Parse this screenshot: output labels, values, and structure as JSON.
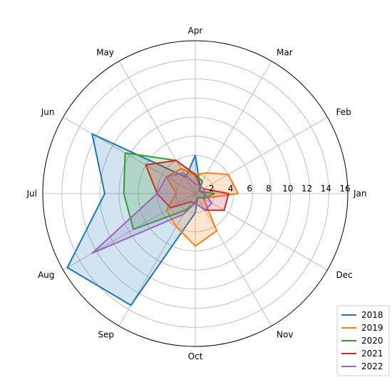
{
  "chart_data": {
    "type": "radar",
    "title": "",
    "categories": [
      "Jan",
      "Feb",
      "Mar",
      "Apr",
      "May",
      "Jun",
      "Jul",
      "Aug",
      "Sep",
      "Oct",
      "Nov",
      "Dec"
    ],
    "radial_ticks": [
      "2",
      "4",
      "6",
      "8",
      "10",
      "12",
      "14",
      "16"
    ],
    "rlim": [
      0,
      16
    ],
    "grid": true,
    "legend_position": "lower-right",
    "series": [
      {
        "name": "2018",
        "color": "#1f77b4",
        "filled": true,
        "values": [
          1.0,
          0.5,
          1.0,
          4.0,
          2.0,
          12.5,
          9.5,
          15.5,
          13.5,
          2.0,
          0.5,
          1.0
        ]
      },
      {
        "name": "2019",
        "color": "#ff7f0e",
        "filled": true,
        "values": [
          4.5,
          4.0,
          2.5,
          2.0,
          3.0,
          3.5,
          2.0,
          3.5,
          4.0,
          5.5,
          4.5,
          1.0
        ]
      },
      {
        "name": "2020",
        "color": "#2ca02c",
        "filled": true,
        "values": [
          2.0,
          0.5,
          1.5,
          2.0,
          4.0,
          8.5,
          7.5,
          7.5,
          2.0,
          1.0,
          0.5,
          1.0
        ]
      },
      {
        "name": "2021",
        "color": "#d62728",
        "filled": true,
        "values": [
          3.5,
          1.0,
          1.0,
          2.0,
          4.0,
          6.0,
          4.0,
          3.0,
          1.0,
          1.0,
          2.0,
          3.5
        ]
      },
      {
        "name": "2022",
        "color": "#9467bd",
        "filled": true,
        "values": [
          1.0,
          1.0,
          1.0,
          1.0,
          2.5,
          3.5,
          4.0,
          12.5,
          2.5,
          1.0,
          2.0,
          2.0
        ]
      }
    ]
  }
}
